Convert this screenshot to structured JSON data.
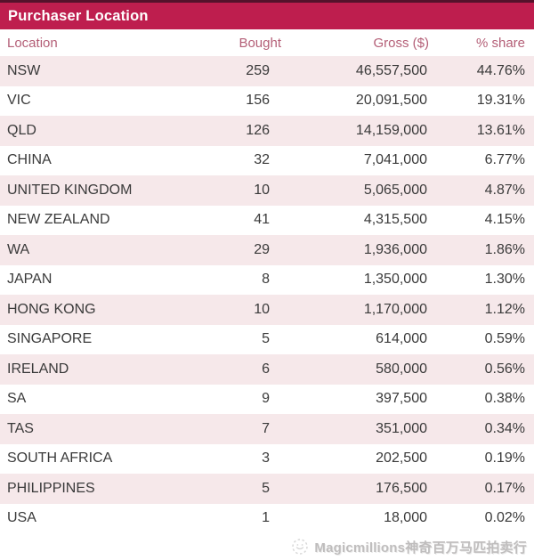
{
  "chart_data": {
    "type": "table",
    "title": "Purchaser Location",
    "columns": [
      "Location",
      "Bought",
      "Gross ($)",
      "% share"
    ],
    "rows": [
      [
        "NSW",
        "259",
        "46,557,500",
        "44.76%"
      ],
      [
        "VIC",
        "156",
        "20,091,500",
        "19.31%"
      ],
      [
        "QLD",
        "126",
        "14,159,000",
        "13.61%"
      ],
      [
        "CHINA",
        "32",
        "7,041,000",
        "6.77%"
      ],
      [
        "UNITED KINGDOM",
        "10",
        "5,065,000",
        "4.87%"
      ],
      [
        "NEW ZEALAND",
        "41",
        "4,315,500",
        "4.15%"
      ],
      [
        "WA",
        "29",
        "1,936,000",
        "1.86%"
      ],
      [
        "JAPAN",
        "8",
        "1,350,000",
        "1.30%"
      ],
      [
        "HONG KONG",
        "10",
        "1,170,000",
        "1.12%"
      ],
      [
        "SINGAPORE",
        "5",
        "614,000",
        "0.59%"
      ],
      [
        "IRELAND",
        "6",
        "580,000",
        "0.56%"
      ],
      [
        "SA",
        "9",
        "397,500",
        "0.38%"
      ],
      [
        "TAS",
        "7",
        "351,000",
        "0.34%"
      ],
      [
        "SOUTH AFRICA",
        "3",
        "202,500",
        "0.19%"
      ],
      [
        "PHILIPPINES",
        "5",
        "176,500",
        "0.17%"
      ],
      [
        "USA",
        "1",
        "18,000",
        "0.02%"
      ]
    ]
  },
  "footer": {
    "watermark": "Magicmillions神奇百万马匹拍卖行",
    "logo_icon": "magicmillions-logo-icon"
  },
  "colors": {
    "top_strip": "#55122b",
    "header_bar": "#be1e4e",
    "header_text": "#ffffff",
    "column_header_text": "#b45f77",
    "row_alt": "#f6e8ea",
    "row_text": "#3a3a3a",
    "watermark_text": "#bfbdbd"
  }
}
